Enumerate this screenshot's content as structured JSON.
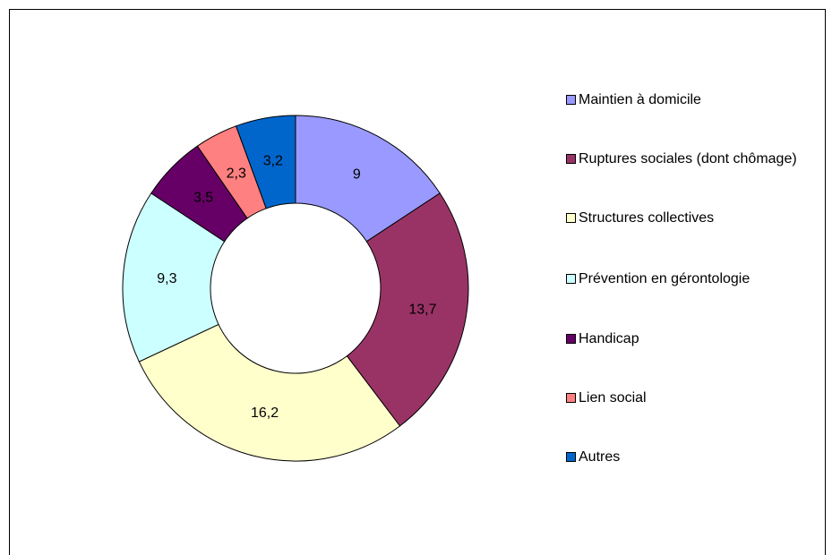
{
  "chart_data": {
    "type": "donut",
    "categories": [
      "Maintien à domicile",
      "Ruptures sociales (dont chômage)",
      "Structures collectives",
      "Prévention en gérontologie",
      "Handicap",
      "Lien social",
      "Autres"
    ],
    "values": [
      9,
      13.7,
      16.2,
      9.3,
      3.5,
      2.3,
      3.2
    ],
    "value_labels": [
      "9",
      "13,7",
      "16,2",
      "9,3",
      "3,5",
      "2,3",
      "3,2"
    ],
    "colors": [
      "#9999ff",
      "#993366",
      "#ffffcc",
      "#ccffff",
      "#660066",
      "#ff8080",
      "#0066cc"
    ],
    "legend": "right"
  }
}
